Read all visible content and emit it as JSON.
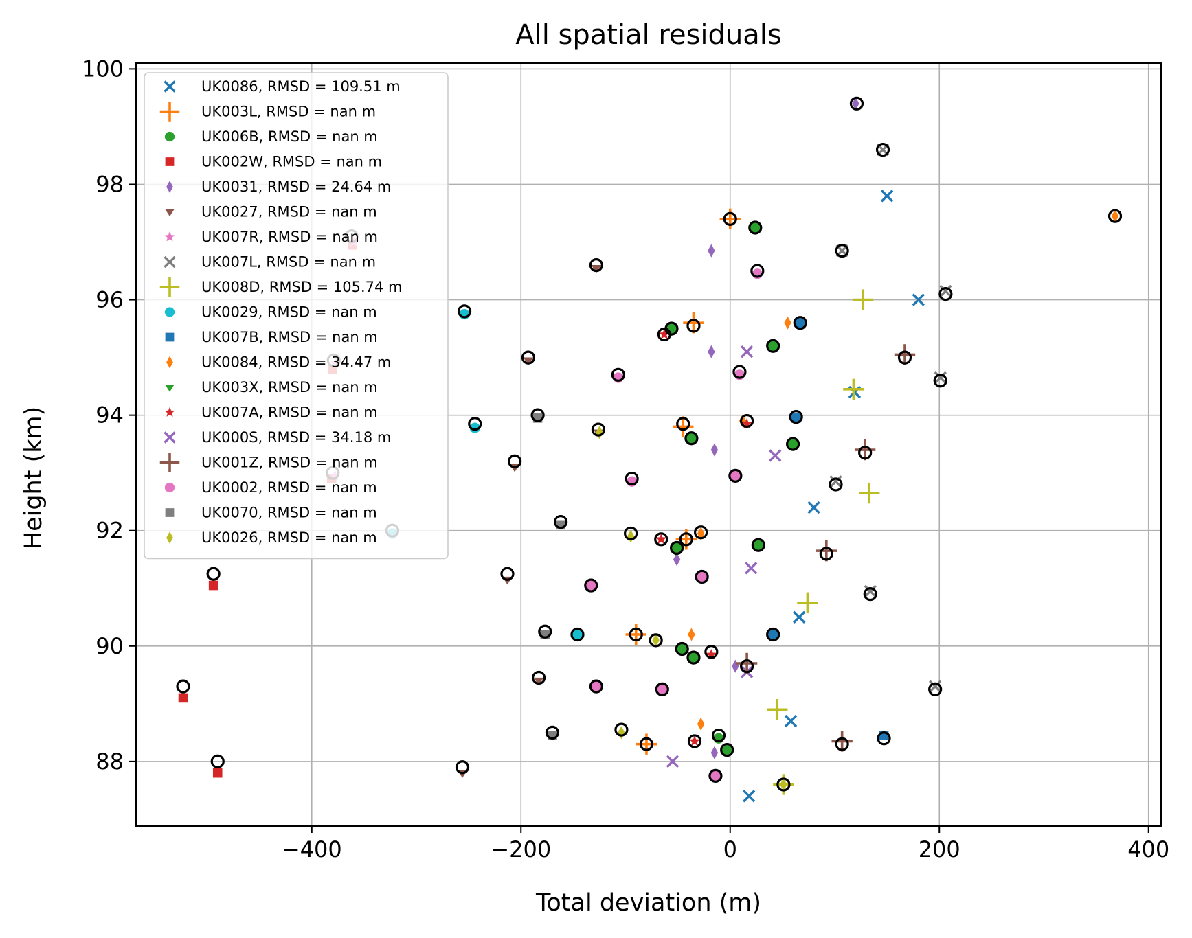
{
  "chart_data": {
    "type": "scatter",
    "title": "All spatial residuals",
    "xlabel": "Total deviation (m)",
    "ylabel": "Height (km)",
    "xlim": [
      -568,
      412
    ],
    "ylim": [
      86.88,
      100.1
    ],
    "xticks": [
      -400,
      -200,
      0,
      200,
      400
    ],
    "yticks": [
      88,
      90,
      92,
      94,
      96,
      98,
      100
    ],
    "xtick_labels": [
      "−400",
      "−200",
      "0",
      "200",
      "400"
    ],
    "ytick_labels": [
      "88",
      "90",
      "92",
      "94",
      "96",
      "98",
      "100"
    ],
    "grid": true,
    "legend_position": "top-left",
    "series": [
      {
        "name": "UK0086, RMSD = 109.51 m",
        "color": "#1f77b4",
        "marker": "x",
        "points": [
          [
            150,
            97.8
          ],
          [
            180,
            96.0
          ],
          [
            119,
            94.4
          ],
          [
            80,
            92.4
          ],
          [
            66,
            90.5
          ],
          [
            58,
            88.7
          ],
          [
            18,
            87.4
          ]
        ]
      },
      {
        "name": "UK003L, RMSD = nan m",
        "color": "#ff7f0e",
        "marker": "plus",
        "points": [
          [
            0,
            97.4
          ],
          [
            -35,
            95.6
          ],
          [
            -45,
            93.8
          ],
          [
            -42,
            91.85
          ],
          [
            -90,
            90.2
          ],
          [
            -80,
            88.3
          ]
        ]
      },
      {
        "name": "UK006B, RMSD = nan m",
        "color": "#2ca02c",
        "marker": "circle",
        "points": [
          [
            24,
            97.25
          ],
          [
            -56,
            95.5
          ],
          [
            41,
            95.2
          ],
          [
            -37,
            93.6
          ],
          [
            60,
            93.5
          ],
          [
            27,
            91.75
          ],
          [
            -51,
            91.7
          ],
          [
            -46,
            89.95
          ],
          [
            -35,
            89.8
          ],
          [
            -11,
            88.4
          ],
          [
            -3,
            88.2
          ]
        ]
      },
      {
        "name": "UK002W, RMSD = nan m",
        "color": "#d62728",
        "marker": "square",
        "points": [
          [
            -361,
            96.95
          ],
          [
            -380,
            94.8
          ],
          [
            -381,
            92.9
          ],
          [
            -494,
            91.05
          ],
          [
            -523,
            89.1
          ],
          [
            -490,
            87.8
          ]
        ]
      },
      {
        "name": "UK0031, RMSD = 24.64 m",
        "color": "#9467bd",
        "marker": "diamond",
        "points": [
          [
            120,
            99.4
          ],
          [
            -18,
            96.85
          ],
          [
            -18,
            95.1
          ],
          [
            -15,
            93.4
          ],
          [
            -51,
            91.5
          ],
          [
            5,
            89.65
          ],
          [
            -15,
            88.15
          ]
        ]
      },
      {
        "name": "UK0027, RMSD = nan m",
        "color": "#8c564b",
        "marker": "tri_down",
        "points": [
          [
            -128,
            96.55
          ],
          [
            -193,
            94.95
          ],
          [
            -206,
            93.1
          ],
          [
            -213,
            91.15
          ],
          [
            -183,
            89.4
          ],
          [
            -256,
            87.8
          ],
          [
            -126,
            93.7
          ]
        ]
      },
      {
        "name": "UK007R, RMSD = nan m",
        "color": "#e377c2",
        "marker": "star",
        "points": [
          [
            -360,
            97.0
          ],
          [
            -377,
            94.9
          ],
          [
            -378,
            92.95
          ]
        ]
      },
      {
        "name": "UK007L, RMSD = nan m",
        "color": "#7f7f7f",
        "marker": "x",
        "points": [
          [
            206,
            96.15
          ],
          [
            201,
            94.65
          ],
          [
            101,
            92.85
          ],
          [
            134,
            90.95
          ],
          [
            196,
            89.3
          ],
          [
            146,
            98.6
          ],
          [
            107,
            96.85
          ]
        ]
      },
      {
        "name": "UK008D, RMSD = 105.74 m",
        "color": "#bcbd22",
        "marker": "plus",
        "points": [
          [
            127,
            96.0
          ],
          [
            118,
            94.45
          ],
          [
            133,
            92.65
          ],
          [
            74,
            90.75
          ],
          [
            45,
            88.9
          ],
          [
            51,
            87.6
          ]
        ]
      },
      {
        "name": "UK0029, RMSD = nan m",
        "color": "#17becf",
        "marker": "circle",
        "points": [
          [
            -254,
            95.75
          ],
          [
            -244,
            93.78
          ],
          [
            -323,
            91.95
          ],
          [
            -146,
            90.2
          ]
        ]
      },
      {
        "name": "UK007B, RMSD = nan m",
        "color": "#1f77b4",
        "marker": "square",
        "points": [
          [
            67,
            95.6
          ],
          [
            63,
            93.95
          ],
          [
            41,
            90.2
          ],
          [
            147,
            88.45
          ]
        ]
      },
      {
        "name": "UK0084, RMSD = 34.47 m",
        "color": "#ff7f0e",
        "marker": "diamond",
        "points": [
          [
            368,
            97.45
          ],
          [
            55,
            95.6
          ],
          [
            12,
            93.9
          ],
          [
            -28,
            91.95
          ],
          [
            -37,
            90.2
          ],
          [
            -28,
            88.65
          ]
        ]
      },
      {
        "name": "UK003X, RMSD = nan m",
        "color": "#2ca02c",
        "marker": "tri_down",
        "points": [
          [
            -56,
            95.45
          ],
          [
            -52,
            91.65
          ]
        ]
      },
      {
        "name": "UK007A, RMSD = nan m",
        "color": "#d62728",
        "marker": "star",
        "points": [
          [
            -63,
            95.4
          ],
          [
            16,
            93.85
          ],
          [
            -66,
            91.85
          ],
          [
            -18,
            89.85
          ],
          [
            -34,
            88.35
          ]
        ]
      },
      {
        "name": "UK000S, RMSD = 34.18 m",
        "color": "#9467bd",
        "marker": "x",
        "points": [
          [
            16,
            95.1
          ],
          [
            43,
            93.3
          ],
          [
            20,
            91.35
          ],
          [
            16,
            89.55
          ],
          [
            -55,
            88.0
          ]
        ]
      },
      {
        "name": "UK001Z, RMSD = nan m",
        "color": "#8c564b",
        "marker": "plus",
        "points": [
          [
            167,
            95.05
          ],
          [
            129,
            93.4
          ],
          [
            92,
            91.65
          ],
          [
            16,
            89.7
          ],
          [
            107,
            88.35
          ]
        ]
      },
      {
        "name": "UK0002, RMSD = nan m",
        "color": "#e377c2",
        "marker": "circle",
        "points": [
          [
            26,
            96.45
          ],
          [
            -107,
            94.65
          ],
          [
            9,
            94.7
          ],
          [
            -94,
            92.85
          ],
          [
            5,
            92.95
          ],
          [
            -133,
            91.05
          ],
          [
            -27,
            91.2
          ],
          [
            -128,
            89.3
          ],
          [
            -65,
            89.25
          ],
          [
            -14,
            87.75
          ]
        ]
      },
      {
        "name": "UK0070, RMSD = nan m",
        "color": "#7f7f7f",
        "marker": "square",
        "points": [
          [
            -184,
            93.95
          ],
          [
            -162,
            92.1
          ],
          [
            -177,
            90.2
          ],
          [
            -170,
            88.45
          ]
        ]
      },
      {
        "name": "UK0026, RMSD = nan m",
        "color": "#bcbd22",
        "marker": "diamond",
        "points": [
          [
            -125,
            93.7
          ],
          [
            -95,
            91.9
          ],
          [
            -71,
            90.1
          ],
          [
            -104,
            88.5
          ],
          [
            51,
            87.6
          ]
        ]
      }
    ],
    "overlay": {
      "name": "open circles",
      "marker": "open-circle",
      "color": "#000000",
      "points": [
        [
          121,
          99.4
        ],
        [
          146,
          98.6
        ],
        [
          0,
          97.4
        ],
        [
          24,
          97.25
        ],
        [
          368,
          97.45
        ],
        [
          -362,
          97.1
        ],
        [
          107,
          96.85
        ],
        [
          26,
          96.5
        ],
        [
          -128,
          96.6
        ],
        [
          206,
          96.1
        ],
        [
          -254,
          95.8
        ],
        [
          67,
          95.6
        ],
        [
          -56,
          95.5
        ],
        [
          -35,
          95.55
        ],
        [
          -63,
          95.4
        ],
        [
          41,
          95.2
        ],
        [
          -193,
          95.0
        ],
        [
          -379,
          94.95
        ],
        [
          167,
          95.0
        ],
        [
          -107,
          94.7
        ],
        [
          9,
          94.75
        ],
        [
          201,
          94.6
        ],
        [
          -184,
          94.0
        ],
        [
          -244,
          93.85
        ],
        [
          -45,
          93.85
        ],
        [
          16,
          93.9
        ],
        [
          63,
          93.97
        ],
        [
          -126,
          93.75
        ],
        [
          -37,
          93.6
        ],
        [
          60,
          93.5
        ],
        [
          -206,
          93.2
        ],
        [
          129,
          93.35
        ],
        [
          -380,
          93.0
        ],
        [
          -94,
          92.9
        ],
        [
          5,
          92.95
        ],
        [
          101,
          92.8
        ],
        [
          -323,
          92.0
        ],
        [
          -162,
          92.15
        ],
        [
          -95,
          91.95
        ],
        [
          -28,
          91.97
        ],
        [
          -66,
          91.85
        ],
        [
          -42,
          91.85
        ],
        [
          -51,
          91.7
        ],
        [
          27,
          91.75
        ],
        [
          92,
          91.6
        ],
        [
          -494,
          91.25
        ],
        [
          -213,
          91.25
        ],
        [
          -27,
          91.2
        ],
        [
          -133,
          91.05
        ],
        [
          134,
          90.9
        ],
        [
          -177,
          90.25
        ],
        [
          -146,
          90.2
        ],
        [
          -90,
          90.2
        ],
        [
          -71,
          90.1
        ],
        [
          41,
          90.2
        ],
        [
          -46,
          89.95
        ],
        [
          -35,
          89.8
        ],
        [
          -18,
          89.9
        ],
        [
          16,
          89.65
        ],
        [
          -183,
          89.45
        ],
        [
          -523,
          89.3
        ],
        [
          -128,
          89.3
        ],
        [
          -65,
          89.25
        ],
        [
          196,
          89.25
        ],
        [
          -170,
          88.5
        ],
        [
          -104,
          88.55
        ],
        [
          -80,
          88.3
        ],
        [
          -34,
          88.35
        ],
        [
          -11,
          88.45
        ],
        [
          -3,
          88.2
        ],
        [
          107,
          88.3
        ],
        [
          147,
          88.4
        ],
        [
          -490,
          88.0
        ],
        [
          -256,
          87.9
        ],
        [
          -14,
          87.75
        ],
        [
          51,
          87.6
        ]
      ]
    }
  }
}
